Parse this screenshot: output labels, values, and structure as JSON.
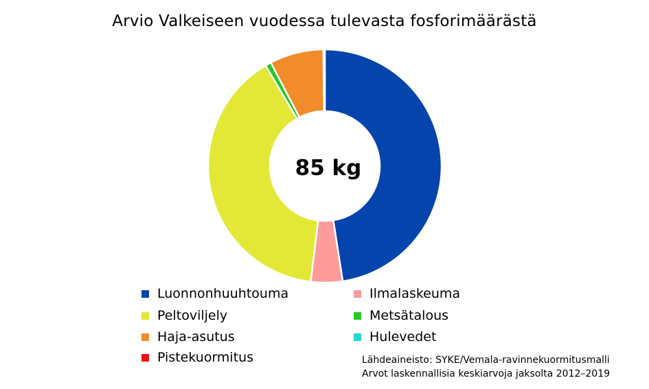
{
  "chart_data": {
    "type": "pie",
    "title": "Arvio Valkeiseen vuodessa tulevasta fosforimäärästä",
    "center_label": "85 kg",
    "categories": [
      "Luonnonhuuhtouma",
      "Ilmalaskeuma",
      "Peltoviljely",
      "Metsätalous",
      "Haja-asutus",
      "Hulevedet",
      "Pistekuormitus"
    ],
    "values": [
      0.466,
      0.043,
      0.388,
      0.008,
      0.073,
      0.002,
      0.0
    ],
    "colors": [
      "#0444AC",
      "#FF9B9B",
      "#E3E836",
      "#26C926",
      "#F28B2A",
      "#22D7D0",
      "#EE1111"
    ],
    "legend": [
      {
        "label": "Luonnonhuuhtouma",
        "color": "#0444AC"
      },
      {
        "label": "Ilmalaskeuma",
        "color": "#FF9B9B"
      },
      {
        "label": "Peltoviljely",
        "color": "#E3E836"
      },
      {
        "label": "Metsätalous",
        "color": "#26C926"
      },
      {
        "label": "Haja-asutus",
        "color": "#F28B2A"
      },
      {
        "label": "Hulevedet",
        "color": "#22D7D0"
      },
      {
        "label": "Pistekuormitus",
        "color": "#EE1111"
      }
    ],
    "legend_placement": "bottom"
  },
  "source_note": {
    "line1": "Lähdeaineisto: SYKE/Vemala-ravinnekuormitusmalli",
    "line2": "Arvot laskennallisia keskiarvoja jaksolta 2012–2019"
  }
}
